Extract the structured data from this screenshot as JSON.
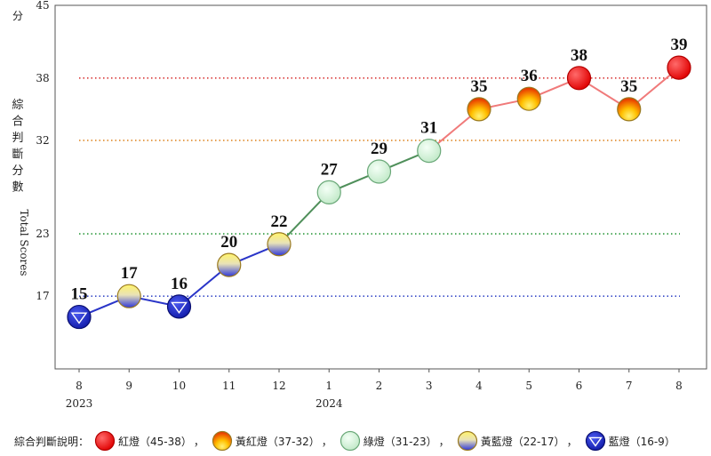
{
  "chart_data": {
    "type": "line",
    "y_unit": "分",
    "ylabel_cn": "綜合判斷分數",
    "ylabel_en": "Total Scores",
    "yticks": [
      17,
      23,
      32,
      38,
      45
    ],
    "ylim": [
      10,
      45
    ],
    "categories": [
      "8",
      "9",
      "10",
      "11",
      "12",
      "1",
      "2",
      "3",
      "4",
      "5",
      "6",
      "7",
      "8"
    ],
    "year_labels": [
      {
        "index": 0,
        "label": "2023"
      },
      {
        "index": 5,
        "label": "2024"
      }
    ],
    "values": [
      15,
      17,
      16,
      20,
      22,
      27,
      29,
      31,
      35,
      36,
      38,
      35,
      39
    ],
    "signals": [
      "blue",
      "yellow-blue",
      "blue",
      "yellow-blue",
      "yellow-blue",
      "green",
      "green",
      "green",
      "yellow-red",
      "yellow-red",
      "red",
      "yellow-red",
      "red"
    ],
    "threshold_lines": [
      {
        "value": 38,
        "color": "#d93a3a"
      },
      {
        "value": 32,
        "color": "#e08a2a"
      },
      {
        "value": 23,
        "color": "#2e9a3e"
      },
      {
        "value": 17,
        "color": "#3a4cc8"
      }
    ],
    "segment_colors": {
      "blue": "#2a35c8",
      "green": "#4f8f5a",
      "red": "#f07a7a"
    },
    "grid": false
  },
  "legend": {
    "title": "綜合判斷說明：",
    "separator": "，",
    "items": [
      {
        "signal": "red",
        "label": "紅燈（45-38）"
      },
      {
        "signal": "yellow-red",
        "label": "黃紅燈（37-32）"
      },
      {
        "signal": "green",
        "label": "綠燈（31-23）"
      },
      {
        "signal": "yellow-blue",
        "label": "黃藍燈（22-17）"
      },
      {
        "signal": "blue",
        "label": "藍燈（16-9）"
      }
    ]
  }
}
